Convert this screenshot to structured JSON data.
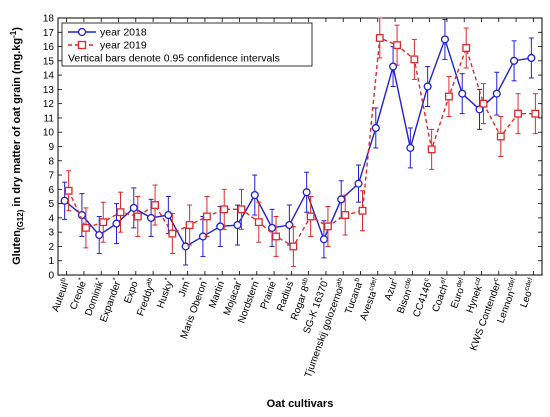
{
  "chart_data": {
    "type": "line",
    "xlabel": "Oat cultivars",
    "ylabel_main": "Gluten",
    "ylabel_sub": "(G12)",
    "ylabel_rest": " in dry matter of oat grain (mg.kg",
    "ylabel_sup": "-1",
    "ylabel_end": ")",
    "ylim": [
      0,
      18
    ],
    "yticks": [
      0,
      1,
      2,
      3,
      4,
      5,
      6,
      7,
      8,
      9,
      10,
      11,
      12,
      13,
      14,
      15,
      16,
      17,
      18
    ],
    "categories": [
      {
        "name": "Auteuil",
        "sup": "b"
      },
      {
        "name": "Creole",
        "sup": "*"
      },
      {
        "name": "Dominik",
        "sup": "*"
      },
      {
        "name": "Expander",
        "sup": "*"
      },
      {
        "name": "Expo",
        "sup": "*"
      },
      {
        "name": "Freddy",
        "sup": "ab"
      },
      {
        "name": "Husky",
        "sup": "*"
      },
      {
        "name": "Jim",
        "sup": "*"
      },
      {
        "name": "Maris Oberon",
        "sup": "*"
      },
      {
        "name": "Martin",
        "sup": "*"
      },
      {
        "name": "Mojacar",
        "sup": "*"
      },
      {
        "name": "Nordstern",
        "sup": "*"
      },
      {
        "name": "Prairie",
        "sup": "*"
      },
      {
        "name": "Radius",
        "sup": "*"
      },
      {
        "name": "Rogar 8",
        "sup": "ab"
      },
      {
        "name": "SG-K 16370",
        "sup": "*"
      },
      {
        "name": "Tjumenskij golozernoi",
        "sup": "ab"
      },
      {
        "name": "Tucana",
        "sup": "b"
      },
      {
        "name": "Avesta",
        "sup": "cdef"
      },
      {
        "name": "Azur",
        "sup": "f"
      },
      {
        "name": "Bison",
        "sup": "cde"
      },
      {
        "name": "CC4146",
        "sup": "c"
      },
      {
        "name": "Coach",
        "sup": "ef"
      },
      {
        "name": "Euro",
        "sup": "def"
      },
      {
        "name": "Hynek",
        "sup": "cd"
      },
      {
        "name": "KWS Contender",
        "sup": "c"
      },
      {
        "name": "Lennon",
        "sup": "cdef"
      },
      {
        "name": "Leo",
        "sup": "cdef"
      }
    ],
    "series": [
      {
        "name": "year 2018",
        "color": "#1f1fd6",
        "marker": "circle",
        "line": "solid",
        "values": [
          5.2,
          4.2,
          2.8,
          3.6,
          4.7,
          4.0,
          4.2,
          2.0,
          2.7,
          3.4,
          3.5,
          5.6,
          3.3,
          3.5,
          5.8,
          2.5,
          5.3,
          6.4,
          10.3,
          14.6,
          8.9,
          13.2,
          16.5,
          12.7,
          11.6,
          12.7,
          15.0,
          15.2
        ],
        "err": [
          1.3,
          1.5,
          1.3,
          1.4,
          1.4,
          1.3,
          1.3,
          1.3,
          1.4,
          1.4,
          1.4,
          1.4,
          1.3,
          1.4,
          1.4,
          1.3,
          1.3,
          1.3,
          1.4,
          1.4,
          1.4,
          1.4,
          1.4,
          1.4,
          1.4,
          1.5,
          1.4,
          1.4
        ]
      },
      {
        "name": "year 2019",
        "color": "#e0282a",
        "marker": "square",
        "line": "dashed",
        "values": [
          5.9,
          3.3,
          3.7,
          4.4,
          4.1,
          4.9,
          2.9,
          3.5,
          4.1,
          4.6,
          4.6,
          3.7,
          2.7,
          2.0,
          4.1,
          3.4,
          4.2,
          4.5,
          16.6,
          16.1,
          15.1,
          8.8,
          12.5,
          15.9,
          12.0,
          9.7,
          11.3,
          11.3
        ],
        "err": [
          1.4,
          1.4,
          1.4,
          1.4,
          1.4,
          1.4,
          1.4,
          1.4,
          1.4,
          1.4,
          1.4,
          1.4,
          1.4,
          1.4,
          1.4,
          1.4,
          1.4,
          1.4,
          1.4,
          1.4,
          1.4,
          1.4,
          1.4,
          1.4,
          1.4,
          1.4,
          1.4,
          1.4
        ]
      }
    ],
    "legend_note": "Vertical bars denote 0.95 confidence intervals",
    "legend_position": "top-left"
  }
}
